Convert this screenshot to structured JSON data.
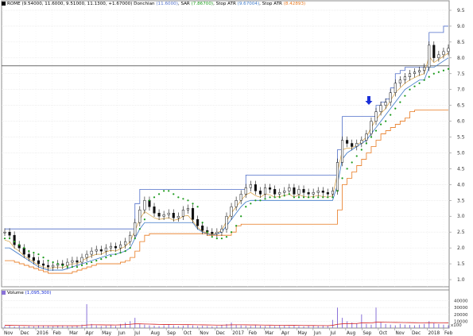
{
  "price_header": {
    "symbol": "ROME",
    "ohlc": "(9.54000, 11.6000, 9.51000, 11.1300, +1.67000)",
    "donchian_label": "Donchian",
    "donchian_value": "(11.6000)",
    "sar_label": "SAR",
    "sar_value": "(7.86700)",
    "stop1_label": "Stop ATR",
    "stop1_value": "(9.67004)",
    "stop2_label": "Stop ATR",
    "stop2_value": "(8.42893)"
  },
  "volume_header": {
    "label": "Volume",
    "value": "(1,095,300)"
  },
  "colors": {
    "donchian": "#4f6ec8",
    "sar": "#1a9a1a",
    "stop1": "#3c78c8",
    "stop2": "#e8781e",
    "midline": "#d8a040",
    "volume": "#8a72d8",
    "volume_avg": "#d42020",
    "arrow": "#1a2fd8"
  },
  "icons": {
    "signal_marker": "down-arrow-icon"
  },
  "chart_data": [
    {
      "type": "candlestick",
      "title": "",
      "ylim": [
        0.5,
        9.5
      ],
      "y_ticks": [
        "9.5",
        "9.0",
        "8.5",
        "8.0",
        "7.5",
        "7.0",
        "6.5",
        "6.0",
        "5.5",
        "5.0",
        "4.5",
        "4.0",
        "3.5",
        "3.0",
        "2.5",
        "2.0",
        "1.5",
        "1.0"
      ],
      "x_ticks": [
        "Nov",
        "Dec",
        "2016",
        "Feb",
        "Mar",
        "Apr",
        "May",
        "Jun",
        "Jul",
        "Aug",
        "Sep",
        "Oct",
        "Nov",
        "Dec",
        "2017",
        "Feb",
        "Mar",
        "Apr",
        "May",
        "Jun",
        "Jul",
        "Aug",
        "Sep",
        "Oct",
        "Nov",
        "Dec",
        "2018",
        "Feb"
      ],
      "horizontal_line": 7.75,
      "close": [
        2.5,
        2.4,
        2.1,
        2.0,
        1.8,
        1.7,
        1.6,
        1.5,
        1.45,
        1.4,
        1.45,
        1.5,
        1.45,
        1.55,
        1.6,
        1.55,
        1.7,
        1.8,
        1.9,
        1.95,
        1.9,
        2.0,
        2.05,
        2.0,
        2.1,
        2.2,
        2.4,
        2.8,
        3.2,
        3.5,
        3.3,
        3.1,
        3.0,
        3.05,
        3.1,
        2.95,
        3.0,
        3.2,
        3.25,
        2.9,
        2.7,
        2.55,
        2.5,
        2.45,
        2.5,
        2.6,
        3.0,
        3.3,
        3.5,
        3.7,
        3.9,
        4.0,
        3.8,
        3.7,
        3.9,
        3.85,
        3.7,
        3.75,
        3.8,
        3.9,
        3.7,
        3.85,
        3.75,
        3.7,
        3.75,
        3.8,
        3.75,
        3.7,
        3.8,
        4.7,
        5.4,
        5.3,
        5.2,
        5.3,
        5.4,
        5.6,
        6.0,
        6.3,
        6.5,
        6.6,
        6.9,
        7.2,
        7.3,
        7.4,
        7.5,
        7.55,
        7.6,
        7.7,
        8.4,
        8.0,
        8.1,
        8.2,
        8.3
      ],
      "donchian_upper": [
        2.6,
        2.6,
        2.6,
        2.6,
        2.6,
        2.6,
        2.6,
        2.6,
        2.6,
        2.6,
        2.6,
        2.6,
        2.6,
        2.6,
        2.6,
        2.6,
        2.6,
        2.6,
        2.6,
        2.6,
        2.6,
        2.6,
        2.6,
        2.6,
        2.6,
        2.6,
        2.6,
        3.4,
        3.85,
        3.85,
        3.85,
        3.85,
        3.85,
        3.85,
        3.85,
        3.85,
        3.85,
        3.85,
        3.85,
        3.85,
        3.85,
        3.85,
        3.85,
        3.85,
        3.85,
        3.85,
        3.85,
        3.85,
        3.85,
        3.85,
        4.3,
        4.3,
        4.3,
        4.3,
        4.3,
        4.3,
        4.3,
        4.3,
        4.3,
        4.3,
        4.3,
        4.3,
        4.3,
        4.3,
        4.3,
        4.3,
        4.3,
        4.3,
        4.3,
        5.1,
        6.15,
        6.15,
        6.15,
        6.15,
        6.15,
        6.15,
        6.15,
        6.5,
        6.6,
        6.7,
        7.05,
        7.5,
        7.6,
        7.7,
        7.7,
        7.7,
        7.7,
        7.7,
        8.8,
        8.8,
        8.8,
        9.0,
        9.0
      ],
      "sar": [
        2.3,
        2.3,
        2.2,
        2.1,
        2.0,
        1.9,
        1.85,
        1.8,
        1.7,
        1.6,
        1.55,
        1.5,
        1.45,
        1.4,
        1.4,
        1.4,
        1.45,
        1.5,
        1.55,
        1.6,
        1.65,
        1.7,
        1.75,
        1.8,
        1.85,
        1.9,
        2.0,
        2.3,
        2.6,
        2.9,
        3.5,
        3.6,
        3.7,
        3.8,
        3.8,
        3.7,
        3.6,
        3.55,
        3.5,
        3.4,
        3.3,
        2.8,
        2.5,
        2.35,
        2.3,
        2.3,
        2.35,
        2.5,
        2.7,
        3.0,
        3.3,
        3.4,
        3.5,
        3.5,
        3.55,
        3.6,
        3.6,
        3.6,
        3.65,
        3.7,
        3.6,
        3.6,
        3.6,
        3.6,
        3.6,
        3.6,
        3.6,
        3.6,
        3.6,
        3.8,
        4.2,
        4.5,
        4.7,
        4.9,
        5.1,
        5.3,
        5.5,
        5.7,
        5.9,
        6.0,
        6.2,
        6.4,
        6.6,
        6.8,
        7.0,
        7.1,
        7.2,
        7.3,
        7.4,
        7.5,
        7.55,
        7.6,
        7.65
      ],
      "stop_atr_1": [
        2.0,
        2.0,
        1.9,
        1.8,
        1.7,
        1.6,
        1.5,
        1.4,
        1.35,
        1.3,
        1.3,
        1.3,
        1.3,
        1.35,
        1.4,
        1.45,
        1.5,
        1.55,
        1.6,
        1.65,
        1.7,
        1.75,
        1.8,
        1.8,
        1.85,
        1.9,
        2.0,
        2.3,
        2.6,
        2.8,
        2.8,
        2.8,
        2.8,
        2.8,
        2.8,
        2.8,
        2.8,
        2.8,
        2.8,
        2.8,
        2.6,
        2.5,
        2.45,
        2.4,
        2.45,
        2.5,
        2.7,
        2.9,
        3.1,
        3.3,
        3.45,
        3.5,
        3.5,
        3.5,
        3.5,
        3.5,
        3.5,
        3.5,
        3.5,
        3.5,
        3.5,
        3.5,
        3.5,
        3.5,
        3.5,
        3.5,
        3.5,
        3.5,
        3.5,
        4.0,
        4.8,
        5.0,
        5.1,
        5.2,
        5.3,
        5.4,
        5.6,
        5.8,
        6.0,
        6.2,
        6.4,
        6.6,
        6.8,
        7.0,
        7.1,
        7.2,
        7.3,
        7.3,
        7.7,
        7.7,
        7.8,
        7.9,
        8.0
      ],
      "stop_atr_2": [
        1.6,
        1.6,
        1.55,
        1.5,
        1.45,
        1.4,
        1.35,
        1.3,
        1.25,
        1.2,
        1.2,
        1.2,
        1.2,
        1.2,
        1.25,
        1.3,
        1.35,
        1.4,
        1.45,
        1.5,
        1.5,
        1.5,
        1.5,
        1.5,
        1.55,
        1.6,
        1.7,
        1.9,
        2.2,
        2.4,
        2.45,
        2.45,
        2.45,
        2.45,
        2.45,
        2.45,
        2.45,
        2.45,
        2.45,
        2.45,
        2.45,
        2.45,
        2.4,
        2.4,
        2.4,
        2.4,
        2.4,
        2.5,
        2.7,
        2.75,
        2.75,
        2.75,
        2.75,
        2.75,
        2.75,
        2.75,
        2.75,
        2.75,
        2.75,
        2.75,
        2.75,
        2.75,
        2.75,
        2.75,
        2.75,
        2.75,
        2.75,
        2.75,
        2.75,
        3.2,
        4.0,
        4.2,
        4.4,
        4.6,
        4.8,
        5.0,
        5.2,
        5.4,
        5.6,
        5.7,
        5.8,
        5.9,
        6.0,
        6.1,
        6.3,
        6.35,
        6.35,
        6.35,
        6.35,
        6.35,
        6.35,
        6.35,
        6.35
      ]
    },
    {
      "type": "bar",
      "title": "",
      "ylim": [
        0,
        50000
      ],
      "y_ticks": [
        "40000",
        "30000",
        "20000",
        "10000"
      ],
      "y_multiplier": "x100",
      "values": [
        3000,
        4000,
        2500,
        3500,
        2000,
        3000,
        2500,
        4000,
        3500,
        3000,
        2500,
        3500,
        4000,
        3000,
        2500,
        3000,
        5000,
        35000,
        6000,
        4000,
        3000,
        3500,
        4000,
        3000,
        6000,
        8000,
        10000,
        15000,
        6000,
        5000,
        4000,
        3500,
        3000,
        4000,
        5000,
        4000,
        3000,
        3500,
        4500,
        4000,
        3000,
        3500,
        3000,
        2500,
        3000,
        4500,
        6000,
        8000,
        5000,
        4000,
        3500,
        3000,
        4000,
        3500,
        3000,
        3500,
        3000,
        4000,
        3500,
        3000,
        3500,
        3000,
        2500,
        3000,
        3500,
        3000,
        3500,
        3000,
        12000,
        30000,
        15000,
        10000,
        8000,
        7000,
        20000,
        6000,
        5000,
        30000,
        8000,
        6000,
        5000,
        4000,
        6000,
        5000,
        4500,
        4000,
        5000,
        6000,
        10000,
        7000,
        6000,
        5000,
        4000
      ],
      "average": [
        4000,
        4000,
        3900,
        3800,
        3700,
        3600,
        3500,
        3500,
        3500,
        3500,
        3400,
        3400,
        3500,
        3500,
        3400,
        3400,
        3600,
        4500,
        4800,
        4800,
        4700,
        4600,
        4600,
        4500,
        4700,
        5000,
        5500,
        6200,
        6200,
        6000,
        5800,
        5600,
        5400,
        5300,
        5300,
        5200,
        5100,
        5000,
        5000,
        4900,
        4800,
        4700,
        4600,
        4500,
        4400,
        4400,
        4500,
        4700,
        4800,
        4800,
        4700,
        4600,
        4600,
        4500,
        4400,
        4300,
        4200,
        4200,
        4100,
        4000,
        4000,
        3900,
        3800,
        3700,
        3700,
        3600,
        3600,
        3500,
        4000,
        5500,
        6200,
        6500,
        6600,
        6700,
        7500,
        7500,
        7400,
        8500,
        8500,
        8400,
        8300,
        8200,
        8100,
        8000,
        7900,
        7800,
        7700,
        7700,
        7800,
        7800,
        7700,
        7600,
        7500
      ]
    }
  ]
}
